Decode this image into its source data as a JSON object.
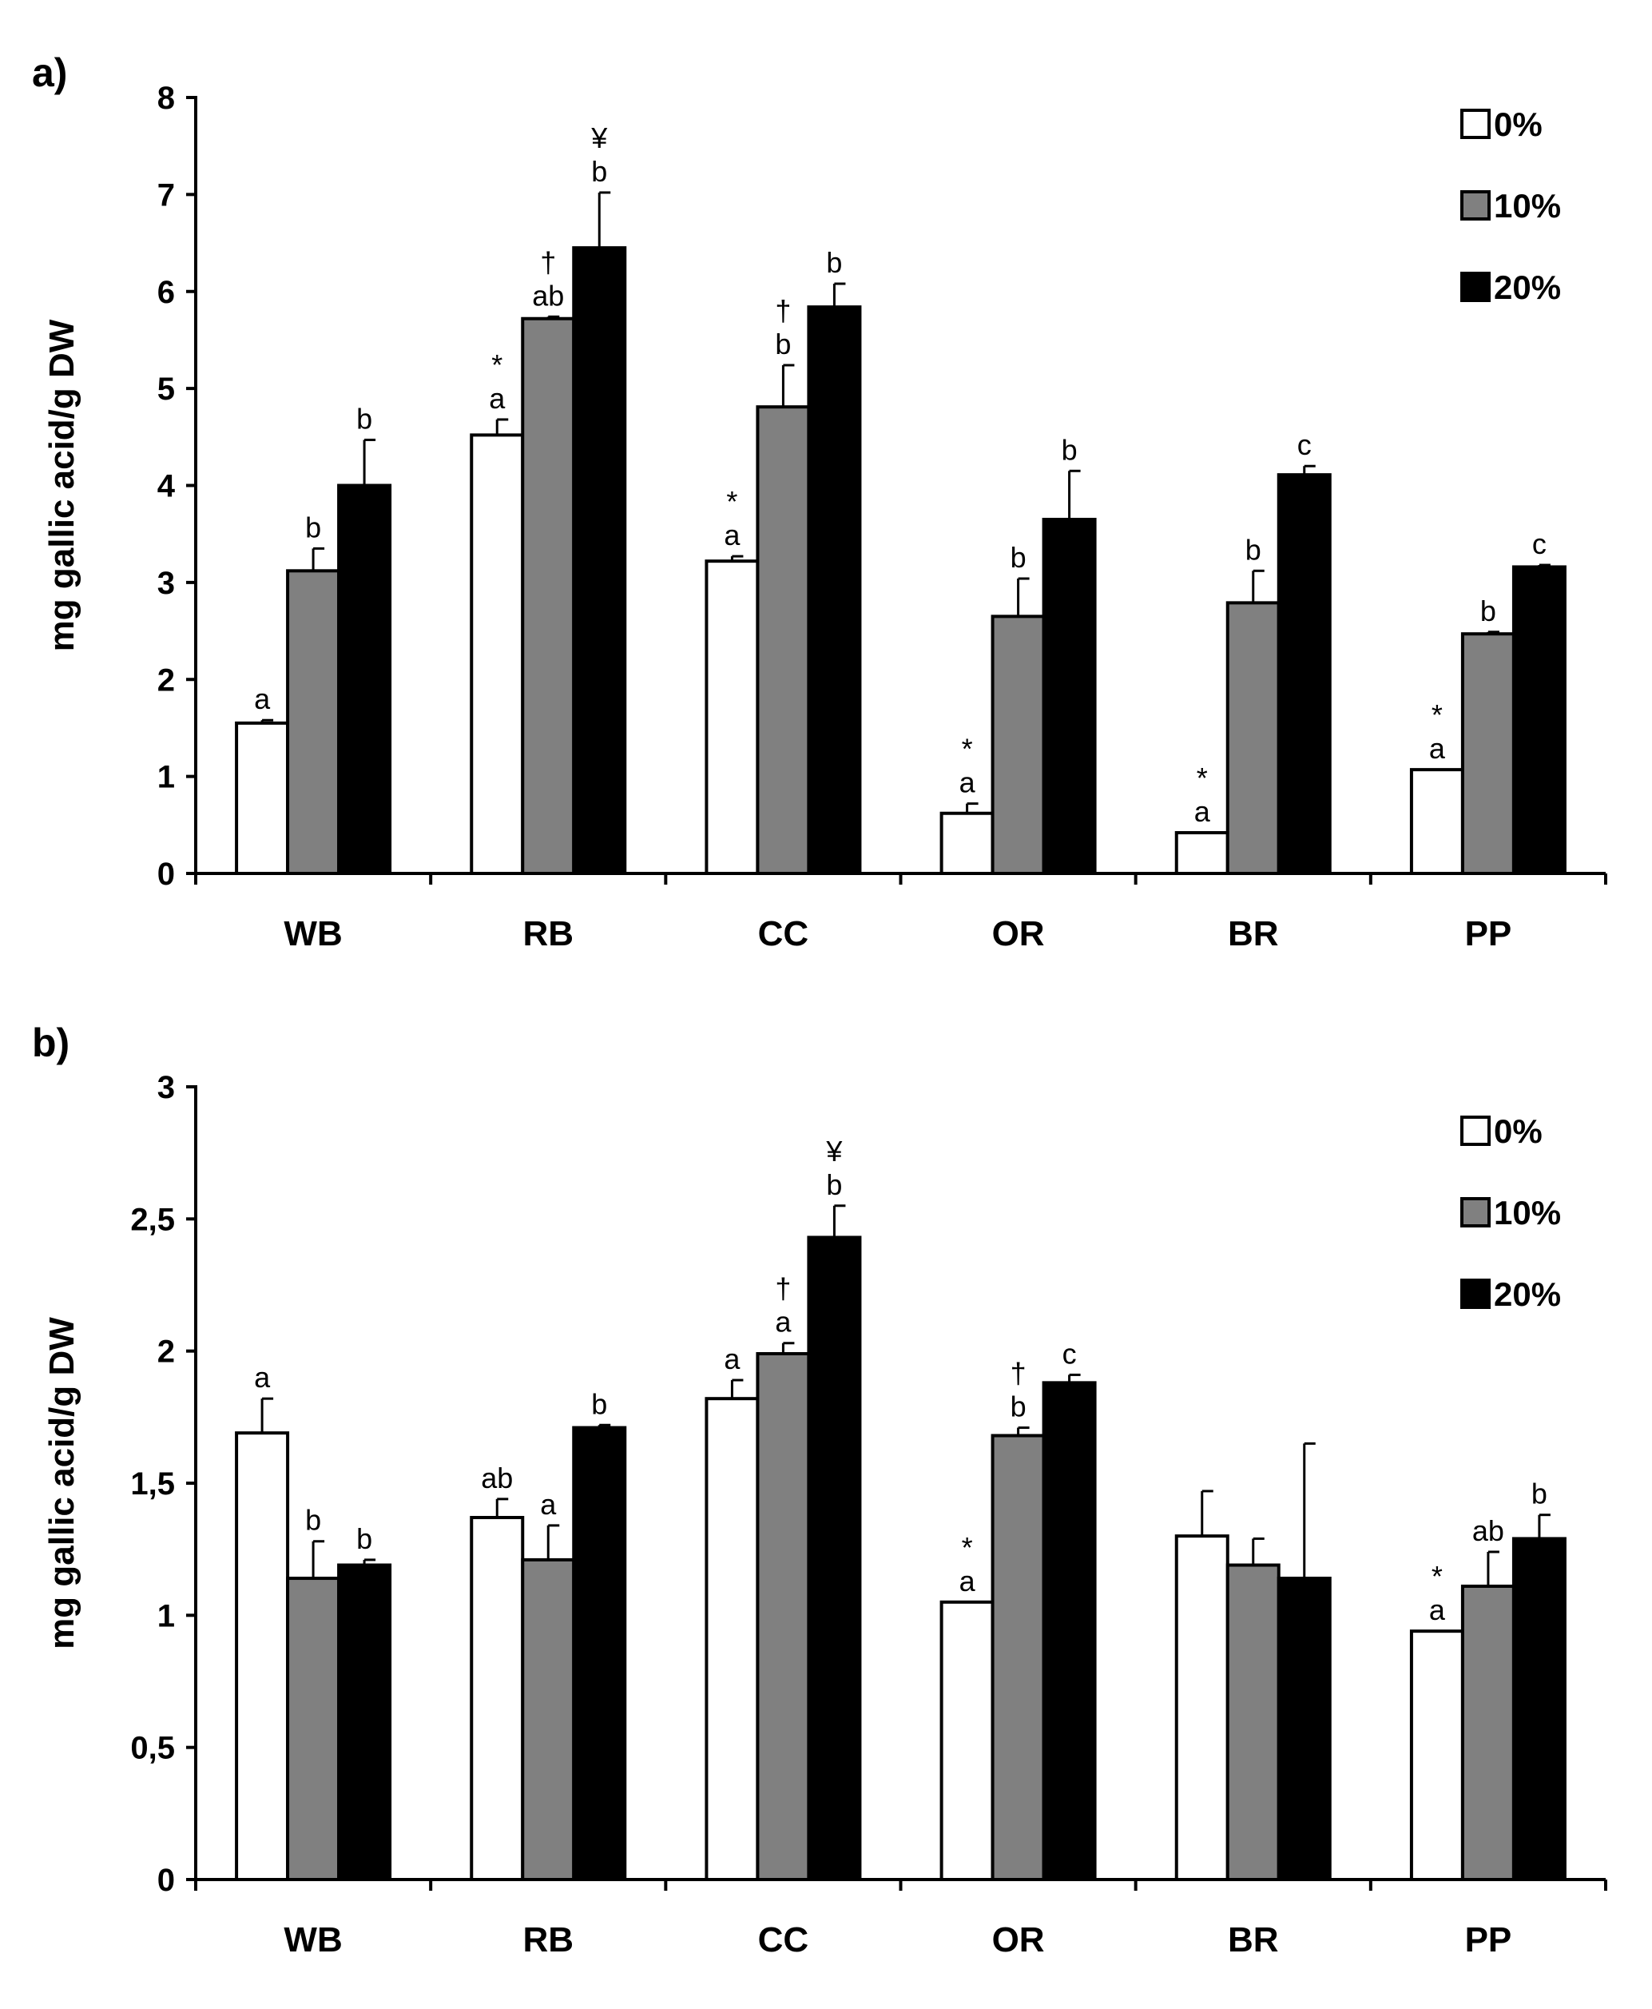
{
  "figure_colors": {
    "0%": "#ffffff",
    "10%": "#808080",
    "20%": "#000000"
  },
  "chart_data": [
    {
      "type": "bar",
      "panel": "a)",
      "ylabel": "mg  gallic acid/g DW",
      "xlabel": "",
      "ylim": [
        0,
        8
      ],
      "yticks": [
        0,
        1,
        2,
        3,
        4,
        5,
        6,
        7,
        8
      ],
      "ytick_labels": [
        "0",
        "1",
        "2",
        "3",
        "4",
        "5",
        "6",
        "7",
        "8"
      ],
      "categories": [
        "WB",
        "RB",
        "CC",
        "OR",
        "BR",
        "PP"
      ],
      "legend": [
        "0%",
        "10%",
        "20%"
      ],
      "legend_position": "top-right",
      "series": [
        {
          "name": "0%",
          "values": [
            1.55,
            4.52,
            3.22,
            0.62,
            0.42,
            1.07
          ],
          "errors": [
            0.03,
            0.16,
            0.05,
            0.1,
            0.0,
            0.0
          ]
        },
        {
          "name": "10%",
          "values": [
            3.12,
            5.72,
            4.81,
            2.65,
            2.79,
            2.47
          ],
          "errors": [
            0.23,
            0.02,
            0.43,
            0.39,
            0.33,
            0.02
          ]
        },
        {
          "name": "20%",
          "values": [
            4.0,
            6.45,
            5.84,
            3.65,
            4.11,
            3.16
          ],
          "errors": [
            0.47,
            0.57,
            0.24,
            0.5,
            0.09,
            0.02
          ]
        }
      ],
      "annotations": [
        [
          "a",
          "b",
          "b"
        ],
        [
          "*\na",
          "†\nab",
          "¥\nb"
        ],
        [
          "*\na",
          "†\nb",
          "b"
        ],
        [
          "*\na",
          "b",
          "b"
        ],
        [
          "*\na",
          "b",
          "c"
        ],
        [
          "*\na",
          "b",
          "c"
        ]
      ]
    },
    {
      "type": "bar",
      "panel": "b)",
      "ylabel": "mg  gallic acid/g DW",
      "xlabel": "",
      "ylim": [
        0,
        3
      ],
      "yticks": [
        0,
        0.5,
        1,
        1.5,
        2,
        2.5,
        3
      ],
      "ytick_labels": [
        "0",
        "0,5",
        "1",
        "1,5",
        "2",
        "2,5",
        "3"
      ],
      "categories": [
        "WB",
        "RB",
        "CC",
        "OR",
        "BR",
        "PP"
      ],
      "legend": [
        "0%",
        "10%",
        "20%"
      ],
      "legend_position": "top-right",
      "series": [
        {
          "name": "0%",
          "values": [
            1.69,
            1.37,
            1.82,
            1.05,
            1.3,
            0.94
          ],
          "errors": [
            0.13,
            0.07,
            0.07,
            0.0,
            0.17,
            0.0
          ]
        },
        {
          "name": "10%",
          "values": [
            1.14,
            1.21,
            1.99,
            1.68,
            1.19,
            1.11
          ],
          "errors": [
            0.14,
            0.13,
            0.04,
            0.03,
            0.1,
            0.13
          ]
        },
        {
          "name": "20%",
          "values": [
            1.19,
            1.71,
            2.43,
            1.88,
            1.14,
            1.29
          ],
          "errors": [
            0.02,
            0.01,
            0.12,
            0.03,
            0.51,
            0.09
          ]
        }
      ],
      "annotations": [
        [
          "a",
          "b",
          "b"
        ],
        [
          "ab",
          "a",
          "b"
        ],
        [
          "a",
          "†\na",
          "¥\nb"
        ],
        [
          "*\na",
          "†\nb",
          "c"
        ],
        [
          "",
          "",
          ""
        ],
        [
          "*\na",
          "ab",
          "b"
        ]
      ]
    }
  ]
}
